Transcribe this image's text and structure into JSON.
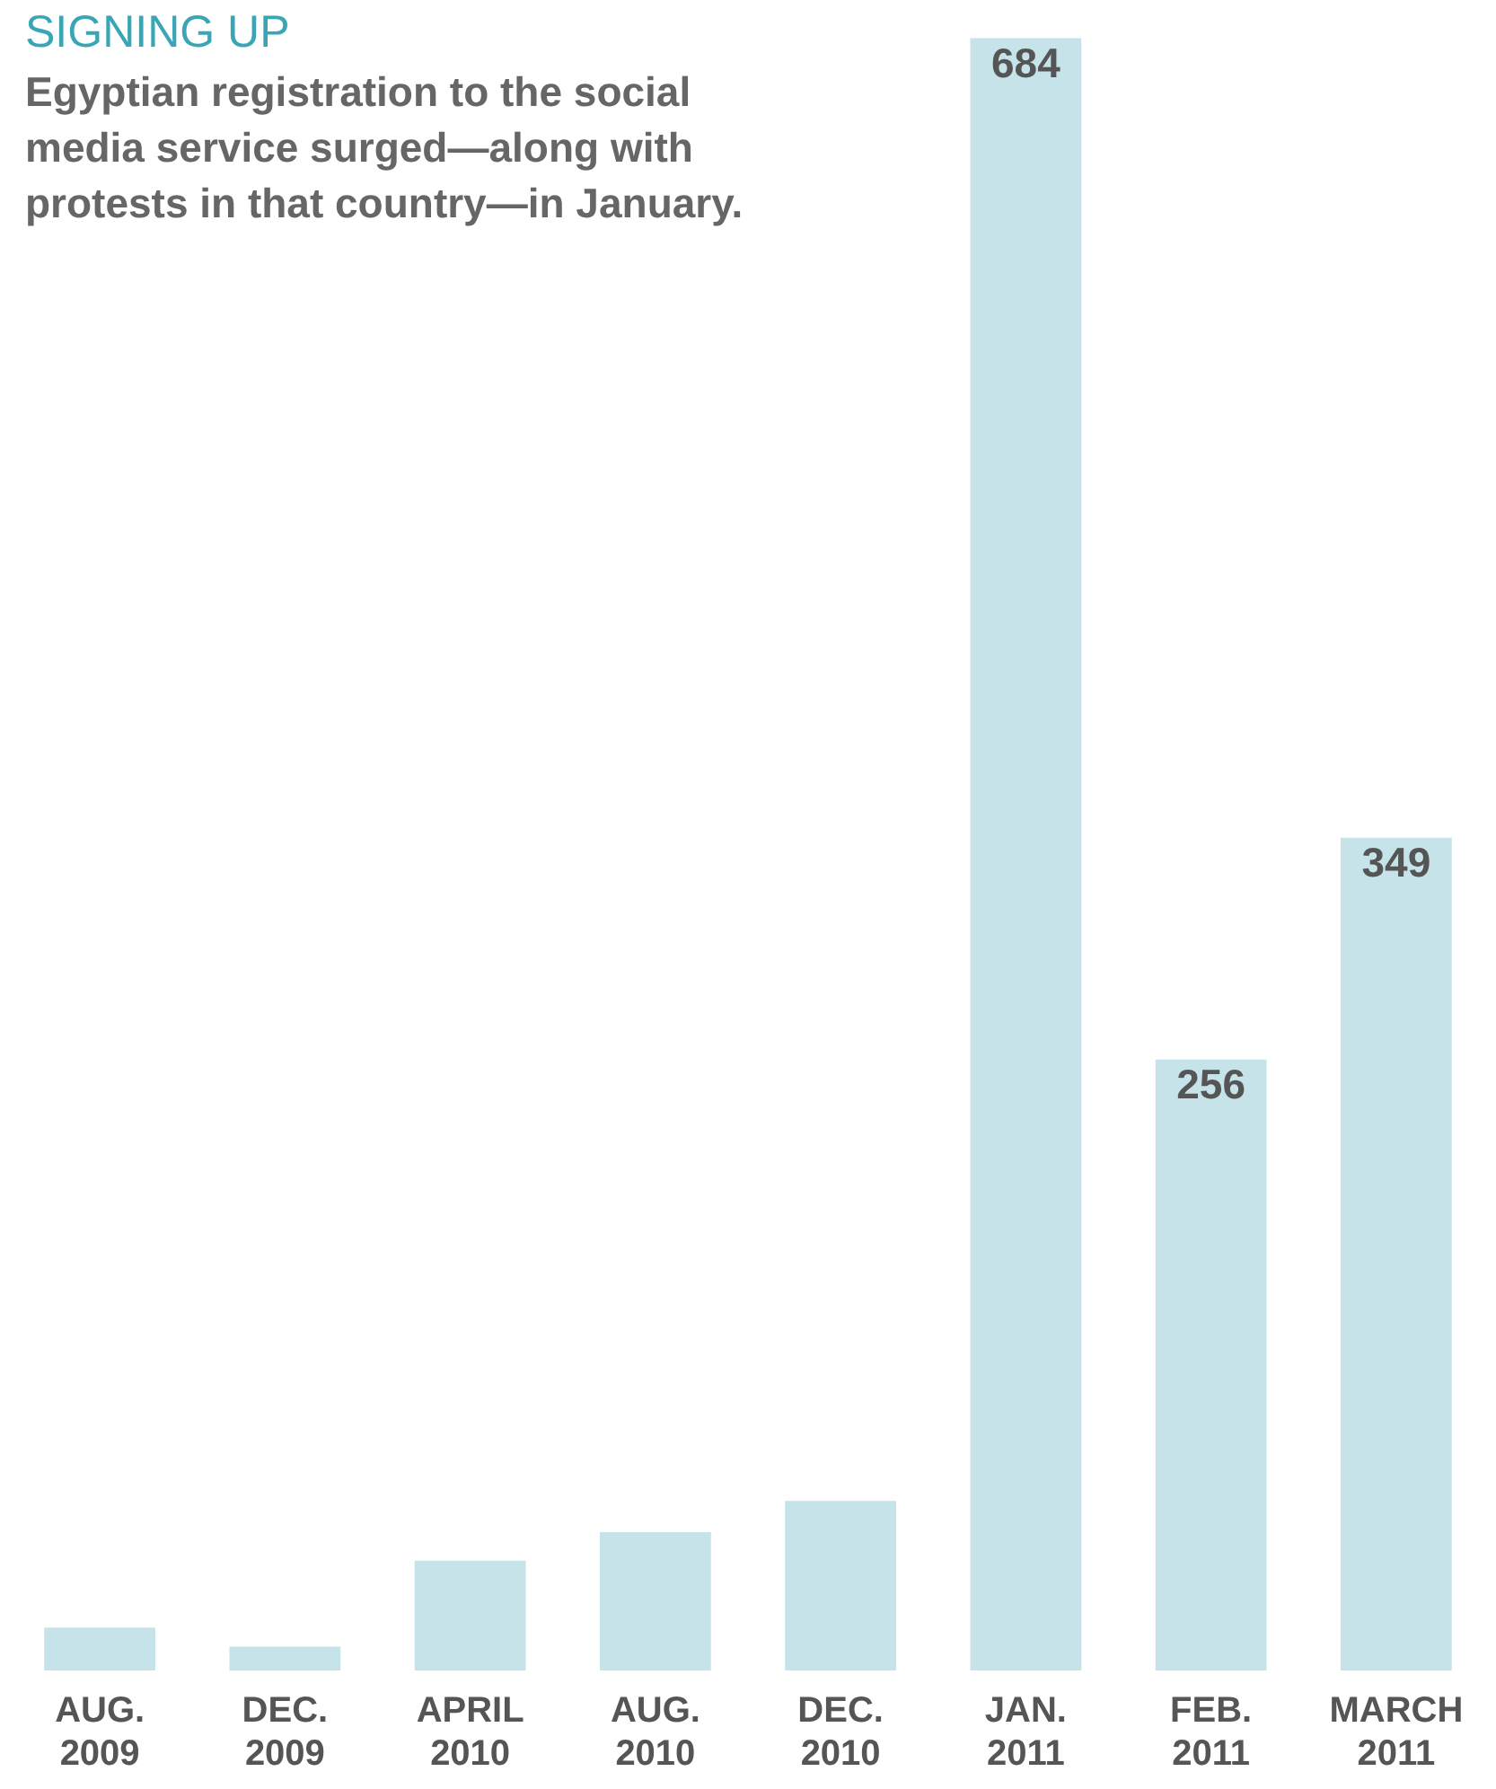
{
  "chart_data": {
    "type": "bar",
    "title": "SIGNING UP",
    "subtitle": "Egyptian registration to the social media service surged—along with protests in that country—in January.",
    "categories": [
      "AUG. 2009",
      "DEC. 2009",
      "APRIL 2010",
      "AUG. 2010",
      "DEC. 2010",
      "JAN. 2011",
      "FEB. 2011",
      "MARCH 2011"
    ],
    "values": [
      18,
      10,
      46,
      58,
      71,
      684,
      256,
      349
    ],
    "value_labels": [
      null,
      null,
      null,
      null,
      null,
      "684",
      "256",
      "349"
    ],
    "color": "#c5e3e8"
  }
}
